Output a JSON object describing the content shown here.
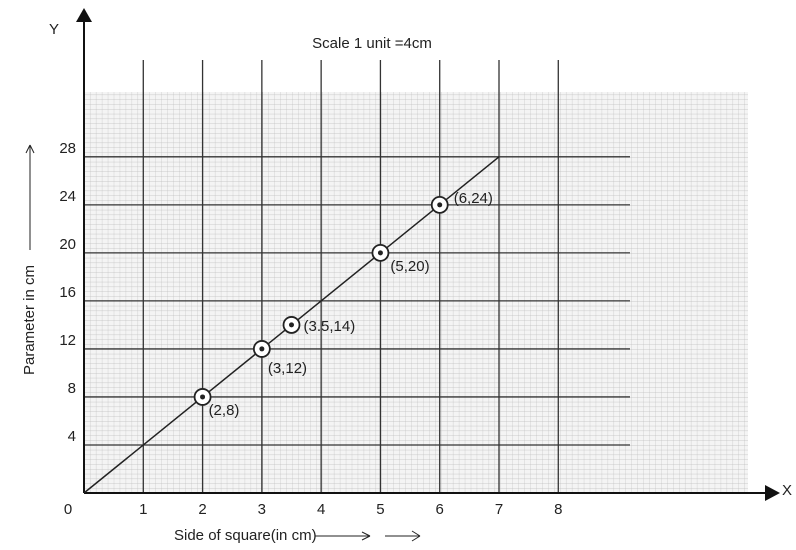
{
  "chart_data": {
    "type": "line",
    "title": "Scale 1 unit =4cm",
    "x_axis_name": "X",
    "y_axis_name": "Y",
    "xlabel": "Side of square(in cm)",
    "ylabel": "Parameter in cm",
    "xlim": [
      0,
      11.2
    ],
    "ylim": [
      0,
      33.4
    ],
    "xticks": [
      0,
      1,
      2,
      3,
      4,
      5,
      6,
      7,
      8
    ],
    "yticks": [
      4,
      8,
      12,
      16,
      20,
      24,
      28
    ],
    "grid": true,
    "series": [
      {
        "name": "points",
        "color": "#222",
        "x": [
          2,
          3,
          3.5,
          5,
          6
        ],
        "values": [
          8,
          12,
          14,
          20,
          24
        ],
        "value_labels": [
          "(2,8)",
          "(3,12)",
          "(3.5,14)",
          "(5,20)",
          "(6,24)"
        ]
      },
      {
        "name": "line",
        "color": "#222",
        "x": [
          0,
          7
        ],
        "values": [
          0,
          28
        ]
      }
    ]
  }
}
